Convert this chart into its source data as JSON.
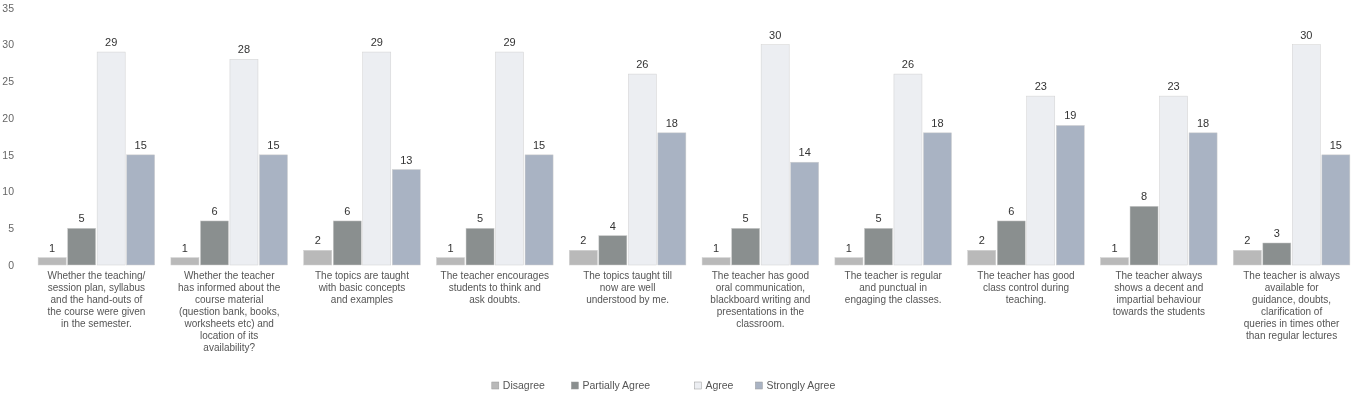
{
  "chart_data": {
    "type": "bar",
    "categories": [
      "Whether the teaching/ session plan, syllabus and the hand-outs of the course were given in the semester.",
      "Whether the teacher has informed about the course material (question bank, books, worksheets etc) and location of its availability?",
      "The topics are taught with basic concepts and examples",
      "The teacher encourages students to think and ask doubts.",
      "The topics taught till now are well understood by me.",
      "The teacher has good oral communication, blackboard writing and presentations in the classroom.",
      "The teacher is regular and punctual in engaging the classes.",
      "The teacher has good class control during teaching.",
      "The teacher always shows a decent and impartial behaviour towards the students",
      "The teacher is always available for guidance, doubts, clarification of queries in times other than regular lectures"
    ],
    "series": [
      {
        "name": "Disagree",
        "color": "#b9b9b9",
        "values": [
          1,
          1,
          2,
          1,
          2,
          1,
          1,
          2,
          1,
          2
        ]
      },
      {
        "name": "Partially Agree",
        "color": "#8a8f8f",
        "values": [
          5,
          6,
          6,
          5,
          4,
          5,
          5,
          6,
          8,
          3
        ]
      },
      {
        "name": "Agree",
        "color": "#eceef2",
        "values": [
          29,
          28,
          29,
          29,
          26,
          30,
          26,
          23,
          23,
          30
        ]
      },
      {
        "name": "Strongly Agree",
        "color": "#a9b3c3",
        "values": [
          15,
          15,
          13,
          15,
          18,
          14,
          18,
          19,
          18,
          15
        ]
      }
    ],
    "ylim": [
      0,
      35
    ],
    "yticks": [
      0,
      5,
      10,
      15,
      20,
      25,
      30,
      35
    ],
    "data_labels": true,
    "legend": "bottom",
    "grid": false
  }
}
